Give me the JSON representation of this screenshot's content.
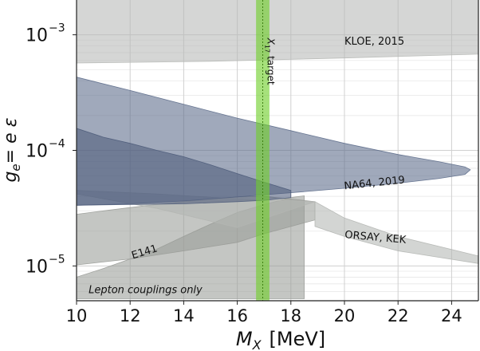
{
  "chart_data": {
    "type": "area",
    "title": "",
    "xlabel_main": "M",
    "xlabel_sub": "X",
    "xlabel_unit": "[MeV]",
    "ylabel_main": "g",
    "ylabel_sub": "e",
    "ylabel_eq": "= e ε",
    "xlim": [
      10,
      25
    ],
    "ylim": [
      5e-06,
      0.002
    ],
    "yscale": "log",
    "grid": true,
    "xticks": [
      {
        "value": 10,
        "label": "10"
      },
      {
        "value": 12,
        "label": "12"
      },
      {
        "value": 14,
        "label": "14"
      },
      {
        "value": 16,
        "label": "16"
      },
      {
        "value": 18,
        "label": "18"
      },
      {
        "value": 20,
        "label": "20"
      },
      {
        "value": 22,
        "label": "22"
      },
      {
        "value": 24,
        "label": "24"
      }
    ],
    "yticks": [
      {
        "value": 1e-05,
        "base": "10",
        "exp": "−5"
      },
      {
        "value": 0.0001,
        "base": "10",
        "exp": "−4"
      },
      {
        "value": 0.001,
        "base": "10",
        "exp": "−3"
      }
    ],
    "regions": [
      {
        "name": "E141",
        "color": "#9a9c98",
        "label": "E141",
        "label_at": {
          "x": 12.1,
          "y": 1.15e-05
        },
        "label_rotate": -17,
        "points": [
          [
            10,
            5.2e-06
          ],
          [
            10,
            8e-06
          ],
          [
            11,
            9.5e-06
          ],
          [
            12,
            1.15e-05
          ],
          [
            13,
            1.4e-05
          ],
          [
            14,
            1.8e-05
          ],
          [
            15,
            2.3e-05
          ],
          [
            16,
            2.9e-05
          ],
          [
            17,
            3.4e-05
          ],
          [
            18,
            3.9e-05
          ],
          [
            18.5,
            4.05e-05
          ],
          [
            18.5,
            5.2e-06
          ]
        ]
      },
      {
        "name": "ORSAY, KEK",
        "color": "#9a9c98",
        "label": "ORSAY, KEK",
        "label_at": {
          "x": 20.0,
          "y": 1.75e-05
        },
        "label_rotate": 5,
        "points": [
          [
            10,
            2.8e-05
          ],
          [
            11,
            3e-05
          ],
          [
            12,
            3.2e-05
          ],
          [
            13,
            3.4e-05
          ],
          [
            14,
            3.6e-05
          ],
          [
            15,
            3.8e-05
          ],
          [
            16,
            3.95e-05
          ],
          [
            17,
            4e-05
          ],
          [
            18,
            3.8e-05
          ],
          [
            18.9,
            3.6e-05
          ],
          [
            18.9,
            2.5e-05
          ],
          [
            17,
            1.9e-05
          ],
          [
            16,
            1.6e-05
          ],
          [
            14,
            1.35e-05
          ],
          [
            12,
            1.15e-05
          ],
          [
            10,
            1.02e-05
          ]
        ]
      },
      {
        "name": "ORSAY-KEK tail",
        "color": "#b4b6b3",
        "label": "",
        "points": [
          [
            10,
            4.5e-05
          ],
          [
            13,
            4.2e-05
          ],
          [
            16,
            3.8e-05
          ],
          [
            18.9,
            3.6e-05
          ],
          [
            20,
            2.6e-05
          ],
          [
            22,
            1.8e-05
          ],
          [
            25,
            1.22e-05
          ],
          [
            25,
            1.05e-05
          ],
          [
            22,
            1.35e-05
          ],
          [
            20,
            1.8e-05
          ],
          [
            18.9,
            2.2e-05
          ],
          [
            18.9,
            3.6e-05
          ],
          [
            16,
            2.15e-05
          ],
          [
            13,
            3.15e-05
          ],
          [
            10,
            4.2e-05
          ]
        ]
      },
      {
        "name": "NA64, 2019",
        "color": "#5c6b8a",
        "label": "NA64, 2019",
        "label_at": {
          "x": 20.0,
          "y": 4.6e-05
        },
        "label_rotate": -6,
        "points": [
          [
            10,
            0.00043
          ],
          [
            12,
            0.00033
          ],
          [
            14,
            0.00025
          ],
          [
            16,
            0.00019
          ],
          [
            18,
            0.000148
          ],
          [
            20,
            0.000115
          ],
          [
            22,
            9.2e-05
          ],
          [
            23.5,
            8e-05
          ],
          [
            24.5,
            7.2e-05
          ],
          [
            24.7,
            6.8e-05
          ],
          [
            24.5,
            6.2e-05
          ],
          [
            23.5,
            5.7e-05
          ],
          [
            22,
            5.2e-05
          ],
          [
            20,
            4.7e-05
          ],
          [
            18,
            4.3e-05
          ],
          [
            16,
            3.95e-05
          ],
          [
            14,
            3.65e-05
          ],
          [
            12,
            3.45e-05
          ],
          [
            10,
            3.35e-05
          ]
        ]
      },
      {
        "name": "NA64 inner",
        "color": "#4e5c7a",
        "label": "",
        "points": [
          [
            10,
            0.000155
          ],
          [
            11,
            0.00013
          ],
          [
            12,
            0.000115
          ],
          [
            13,
            0.0001
          ],
          [
            14,
            8.8e-05
          ],
          [
            15,
            7.5e-05
          ],
          [
            16,
            6.3e-05
          ],
          [
            17,
            5.3e-05
          ],
          [
            18,
            4.5e-05
          ],
          [
            18,
            3.9e-05
          ],
          [
            17,
            3.7e-05
          ],
          [
            16,
            3.6e-05
          ],
          [
            14,
            3.45e-05
          ],
          [
            12,
            3.4e-05
          ],
          [
            10,
            3.35e-05
          ]
        ]
      },
      {
        "name": "KLOE, 2015",
        "color": "#b7b9b6",
        "label": "KLOE, 2015",
        "label_at": {
          "x": 20.0,
          "y": 0.00082
        },
        "label_rotate": 0,
        "points": [
          [
            10,
            0.0021
          ],
          [
            25,
            0.0021
          ],
          [
            25,
            0.00068
          ],
          [
            20,
            0.00063
          ],
          [
            15,
            0.00059
          ],
          [
            10,
            0.00057
          ]
        ]
      }
    ],
    "band": {
      "name": "X17 target",
      "color": "#6fcf2a",
      "x_min": 16.7,
      "x_max": 17.2,
      "center": 16.95,
      "label_base": "X",
      "label_sub": "17",
      "label_rest": "target",
      "label_y": 0.00035
    },
    "annotation": {
      "text": "Lepton couplings only",
      "at": {
        "x": 10.45,
        "y": 5.8e-06
      }
    }
  }
}
